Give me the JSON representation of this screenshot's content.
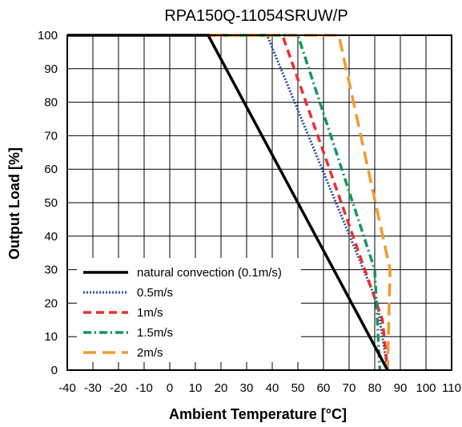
{
  "chart_data": {
    "type": "line",
    "title": "RPA150Q-11054SRUW/P",
    "xlabel": "Ambient Temperature [°C]",
    "ylabel": "Output Load [%]",
    "xlim": [
      -40,
      110
    ],
    "ylim": [
      0,
      100
    ],
    "x_ticks": [
      -40,
      -30,
      -20,
      -10,
      0,
      10,
      20,
      30,
      40,
      50,
      60,
      70,
      80,
      90,
      100,
      110
    ],
    "y_ticks": [
      0,
      10,
      20,
      30,
      40,
      50,
      60,
      70,
      80,
      90,
      100
    ],
    "grid": true,
    "legend_position": "bottom-left",
    "series": [
      {
        "name": "natural convection (0.1m/s)",
        "color": "#000000",
        "style": "solid",
        "points": [
          [
            -40,
            100
          ],
          [
            15,
            100
          ],
          [
            85,
            0
          ]
        ]
      },
      {
        "name": "0.5m/s",
        "color": "#2a4fa0",
        "style": "dotted",
        "points": [
          [
            15,
            100
          ],
          [
            38,
            100
          ],
          [
            81,
            20
          ],
          [
            85,
            0
          ]
        ]
      },
      {
        "name": "1m/s",
        "color": "#e8312f",
        "style": "dashed",
        "points": [
          [
            15,
            100
          ],
          [
            44,
            100
          ],
          [
            83,
            15
          ],
          [
            85,
            0
          ]
        ]
      },
      {
        "name": "1.5m/s",
        "color": "#14965a",
        "style": "dashdot",
        "points": [
          [
            15,
            100
          ],
          [
            50,
            100
          ],
          [
            80,
            30
          ],
          [
            82,
            0
          ]
        ]
      },
      {
        "name": "2m/s",
        "color": "#f39a2b",
        "style": "longdash",
        "points": [
          [
            15,
            100
          ],
          [
            66,
            100
          ],
          [
            86,
            30
          ],
          [
            85,
            0
          ]
        ]
      }
    ]
  }
}
